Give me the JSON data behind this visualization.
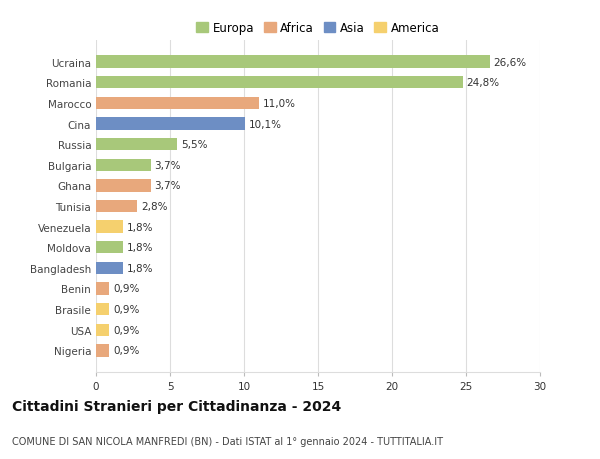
{
  "countries": [
    "Ucraina",
    "Romania",
    "Marocco",
    "Cina",
    "Russia",
    "Bulgaria",
    "Ghana",
    "Tunisia",
    "Venezuela",
    "Moldova",
    "Bangladesh",
    "Benin",
    "Brasile",
    "USA",
    "Nigeria"
  ],
  "values": [
    26.6,
    24.8,
    11.0,
    10.1,
    5.5,
    3.7,
    3.7,
    2.8,
    1.8,
    1.8,
    1.8,
    0.9,
    0.9,
    0.9,
    0.9
  ],
  "labels": [
    "26,6%",
    "24,8%",
    "11,0%",
    "10,1%",
    "5,5%",
    "3,7%",
    "3,7%",
    "2,8%",
    "1,8%",
    "1,8%",
    "1,8%",
    "0,9%",
    "0,9%",
    "0,9%",
    "0,9%"
  ],
  "continent": [
    "Europa",
    "Europa",
    "Africa",
    "Asia",
    "Europa",
    "Europa",
    "Africa",
    "Africa",
    "America",
    "Europa",
    "Asia",
    "Africa",
    "America",
    "America",
    "Africa"
  ],
  "colors": {
    "Europa": "#a8c87a",
    "Africa": "#e8a87c",
    "Asia": "#6d8ec4",
    "America": "#f5d06e"
  },
  "xlim": [
    0,
    30
  ],
  "xticks": [
    0,
    5,
    10,
    15,
    20,
    25,
    30
  ],
  "title": "Cittadini Stranieri per Cittadinanza - 2024",
  "subtitle": "COMUNE DI SAN NICOLA MANFREDI (BN) - Dati ISTAT al 1° gennaio 2024 - TUTTITALIA.IT",
  "background_color": "#ffffff",
  "grid_color": "#dddddd",
  "bar_height": 0.6,
  "label_fontsize": 7.5,
  "tick_fontsize": 7.5,
  "title_fontsize": 10,
  "subtitle_fontsize": 7,
  "legend_fontsize": 8.5
}
